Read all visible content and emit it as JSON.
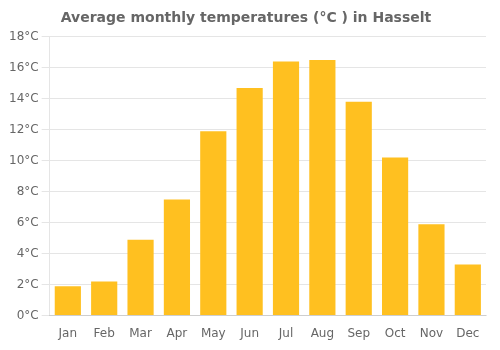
{
  "chart_data": {
    "type": "bar",
    "title": "Average monthly temperatures (°C ) in Hasselt",
    "categories": [
      "Jan",
      "Feb",
      "Mar",
      "Apr",
      "May",
      "Jun",
      "Jul",
      "Aug",
      "Sep",
      "Oct",
      "Nov",
      "Dec"
    ],
    "values": [
      1.9,
      2.2,
      4.9,
      7.5,
      11.9,
      14.7,
      16.4,
      16.5,
      13.8,
      10.2,
      5.9,
      3.3
    ],
    "color": "#FFC020",
    "ylim": [
      0,
      18
    ],
    "yticks": [
      {
        "value": 0,
        "label": "0°C"
      },
      {
        "value": 2,
        "label": "2°C"
      },
      {
        "value": 4,
        "label": "4°C"
      },
      {
        "value": 6,
        "label": "6°C"
      },
      {
        "value": 8,
        "label": "8°C"
      },
      {
        "value": 10,
        "label": "10°C"
      },
      {
        "value": 12,
        "label": "12°C"
      },
      {
        "value": 14,
        "label": "14°C"
      },
      {
        "value": 16,
        "label": "16°C"
      },
      {
        "value": 18,
        "label": "18°C"
      }
    ],
    "grid": true
  }
}
